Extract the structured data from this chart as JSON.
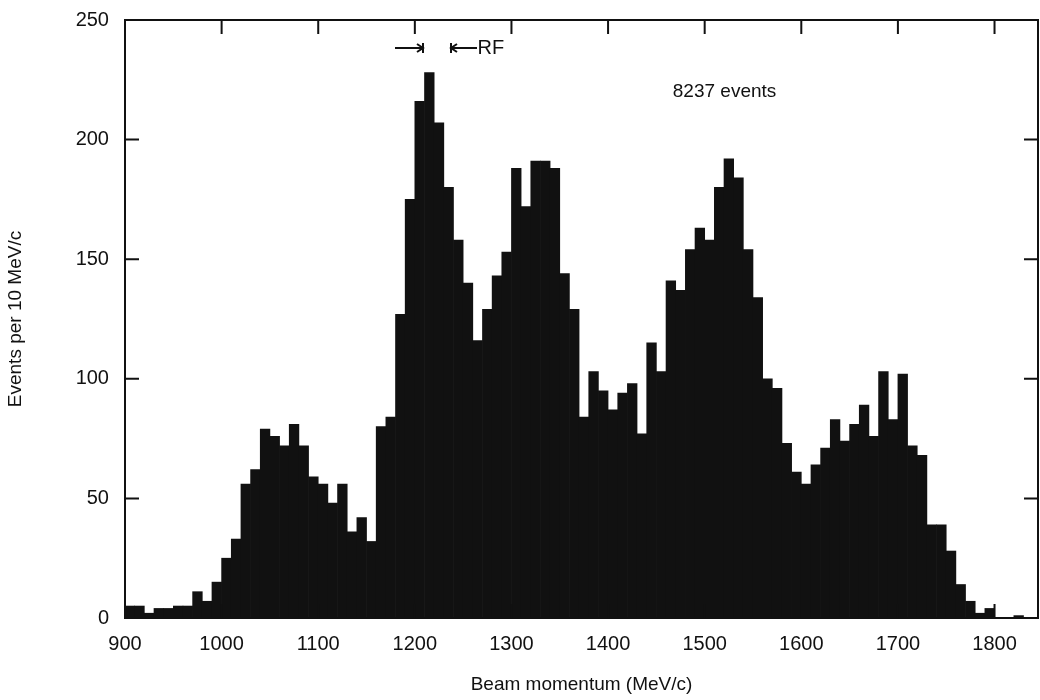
{
  "chart_data": {
    "type": "histogram",
    "xlabel": "Beam momentum (MeV/c)",
    "ylabel": "Events per 10 MeV/c",
    "annotations": [
      "8237 events",
      "RF"
    ],
    "bins": [
      900,
      910,
      920,
      930,
      940,
      950,
      960,
      970,
      980,
      990,
      1000,
      1010,
      1020,
      1030,
      1040,
      1050,
      1060,
      1070,
      1080,
      1090,
      1100,
      1110,
      1120,
      1130,
      1140,
      1150,
      1160,
      1170,
      1180,
      1190,
      1200,
      1210,
      1220,
      1230,
      1240,
      1250,
      1260,
      1270,
      1280,
      1290,
      1300,
      1310,
      1320,
      1330,
      1340,
      1350,
      1360,
      1370,
      1380,
      1390,
      1400,
      1410,
      1420,
      1430,
      1440,
      1450,
      1460,
      1470,
      1480,
      1490,
      1500,
      1510,
      1520,
      1530,
      1540,
      1550,
      1560,
      1570,
      1580,
      1590,
      1600,
      1610,
      1620,
      1630,
      1640,
      1650,
      1660,
      1670,
      1680,
      1690,
      1700,
      1710,
      1720,
      1730,
      1740,
      1750,
      1760,
      1770,
      1780,
      1790,
      1800,
      1810,
      1820,
      1830,
      1840
    ],
    "values": [
      5,
      5,
      2,
      4,
      4,
      5,
      5,
      11,
      7,
      15,
      25,
      33,
      56,
      62,
      79,
      76,
      72,
      81,
      72,
      59,
      56,
      48,
      56,
      36,
      42,
      32,
      80,
      84,
      127,
      175,
      216,
      228,
      207,
      180,
      158,
      140,
      116,
      129,
      143,
      153,
      188,
      172,
      191,
      191,
      188,
      144,
      129,
      84,
      103,
      95,
      87,
      94,
      98,
      77,
      115,
      103,
      141,
      137,
      154,
      163,
      158,
      180,
      192,
      184,
      154,
      134,
      100,
      96,
      73,
      61,
      56,
      64,
      71,
      83,
      74,
      81,
      89,
      76,
      103,
      83,
      102,
      72,
      68,
      39,
      39,
      28,
      14,
      7,
      2,
      4,
      0,
      0,
      1,
      0
    ],
    "color": "#111111",
    "xlim": [
      900,
      1845
    ],
    "xticks": [
      900,
      1000,
      1100,
      1200,
      1300,
      1400,
      1500,
      1600,
      1700,
      1800
    ],
    "ylim": [
      0,
      250
    ],
    "yticks": [
      0,
      50,
      100,
      150,
      200,
      250
    ],
    "grid": false,
    "legend": false
  }
}
